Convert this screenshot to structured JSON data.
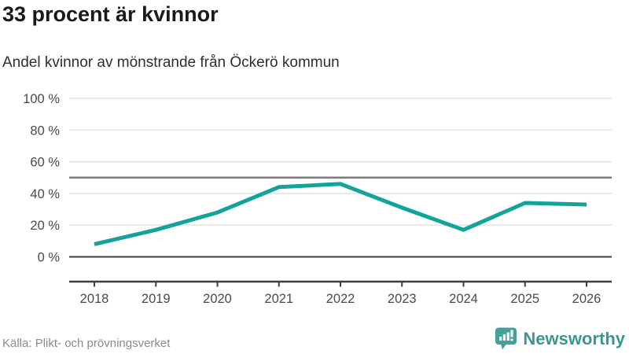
{
  "header": {
    "title": "33 procent är kvinnor",
    "subtitle": "Andel kvinnor av mönstrande från Öckerö kommun"
  },
  "chart_data": {
    "type": "line",
    "title": "33 procent är kvinnor",
    "subtitle": "Andel kvinnor av mönstrande från Öckerö kommun",
    "x": [
      2018,
      2019,
      2020,
      2021,
      2022,
      2023,
      2024,
      2025,
      2026
    ],
    "series": [
      {
        "name": "Andel kvinnor av mönstrande",
        "values": [
          8,
          17,
          28,
          44,
          46,
          31,
          17,
          34,
          33
        ]
      }
    ],
    "ylim": [
      0,
      100
    ],
    "yticks": [
      0,
      20,
      40,
      60,
      80,
      100
    ],
    "ytick_suffix": " %",
    "reference_line_y": 50,
    "grid": "horizontal",
    "legend": "none",
    "line_color": "#12a39a"
  },
  "footer": {
    "source": "Källa: Plikt- och prövningsverket",
    "brand": "Newsworthy"
  },
  "colors": {
    "line": "#12a39a",
    "grid_light": "#e4e4e4",
    "grid_ref": "#7c7c7c",
    "axis_dark": "#3f3f3f",
    "brand_teal": "#3a968f",
    "logo_teal": "#46a09a"
  }
}
